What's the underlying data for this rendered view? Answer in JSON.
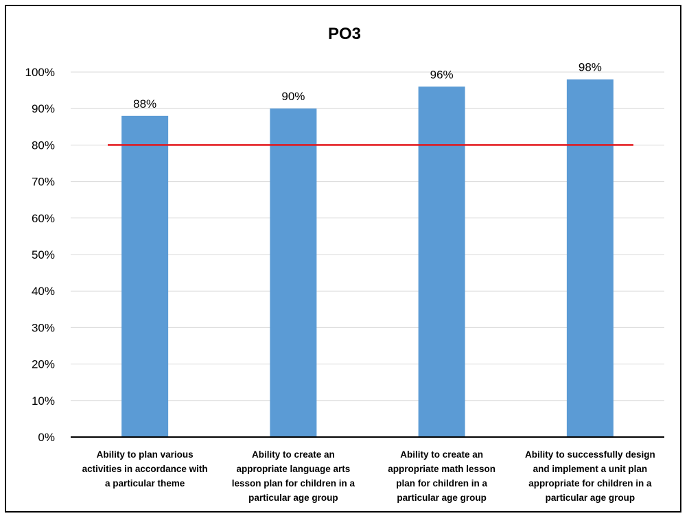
{
  "chart_data": {
    "type": "bar",
    "title": "PO3",
    "categories": [
      [
        "Ability to plan various",
        "activities in accordance with",
        "a particular theme"
      ],
      [
        "Ability to create an",
        "appropriate language arts",
        "lesson plan for children in a",
        "particular age group"
      ],
      [
        "Ability to create an",
        "appropriate math lesson",
        "plan for children in a",
        "particular age group"
      ],
      [
        "Ability to successfully design",
        "and implement a unit plan",
        "appropriate for children in a",
        "particular age group"
      ]
    ],
    "values": [
      88,
      90,
      96,
      98
    ],
    "data_labels": [
      "88%",
      "90%",
      "96%",
      "98%"
    ],
    "ylim": [
      0,
      100
    ],
    "y_ticks": [
      0,
      10,
      20,
      30,
      40,
      50,
      60,
      70,
      80,
      90,
      100
    ],
    "y_tick_labels": [
      "0%",
      "10%",
      "20%",
      "30%",
      "40%",
      "50%",
      "60%",
      "70%",
      "80%",
      "90%",
      "100%"
    ],
    "reference_line": {
      "value": 80,
      "color": "#e3161a"
    },
    "bar_color": "#5b9bd5",
    "gridlines": true,
    "legend": "none"
  }
}
